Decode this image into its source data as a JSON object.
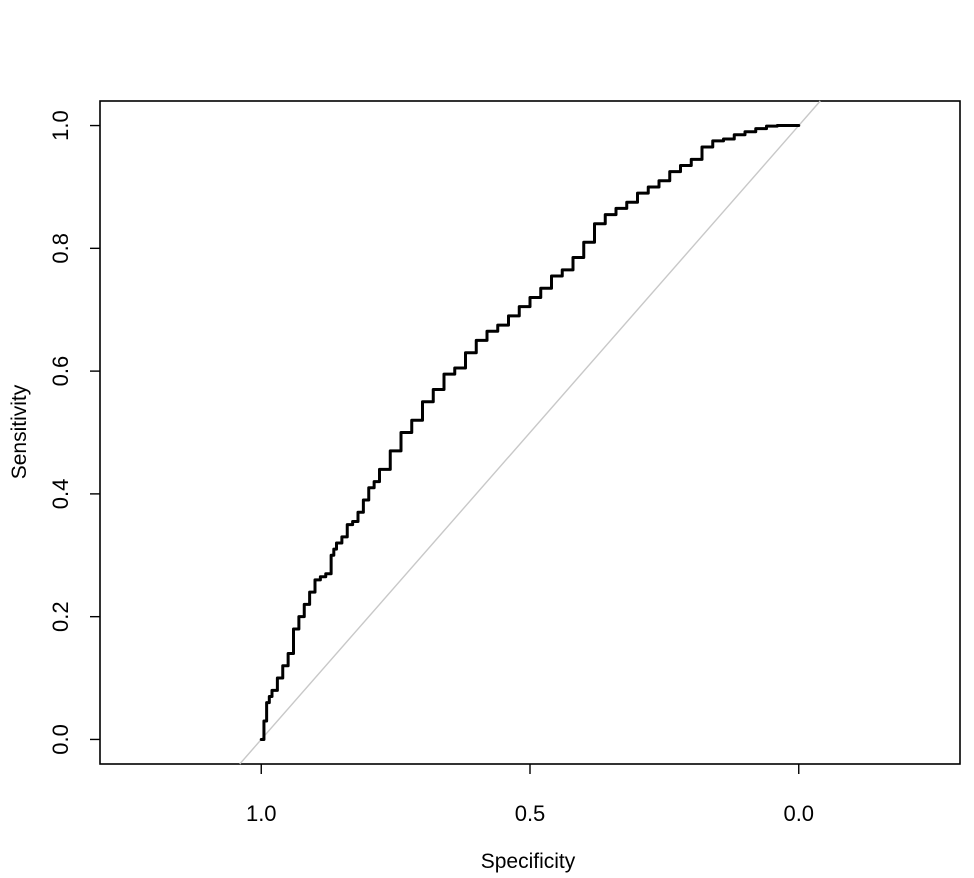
{
  "chart_data": {
    "type": "line",
    "title": "",
    "xlabel": "Specificity",
    "ylabel": "Sensitivity",
    "x_reversed": true,
    "xlim": [
      1.3,
      -0.3
    ],
    "ylim": [
      -0.04,
      1.04
    ],
    "x_ticks": [
      1.0,
      0.5,
      0.0
    ],
    "x_tick_labels": [
      "1.0",
      "0.5",
      "0.0"
    ],
    "y_ticks": [
      0.0,
      0.2,
      0.4,
      0.6,
      0.8,
      1.0
    ],
    "y_tick_labels": [
      "0.0",
      "0.2",
      "0.4",
      "0.6",
      "0.8",
      "1.0"
    ],
    "grid": false,
    "series": [
      {
        "color": "#000000",
        "x": [
          1.0,
          0.995,
          0.99,
          0.985,
          0.98,
          0.97,
          0.96,
          0.95,
          0.94,
          0.93,
          0.92,
          0.91,
          0.9,
          0.89,
          0.88,
          0.87,
          0.865,
          0.86,
          0.85,
          0.84,
          0.83,
          0.82,
          0.81,
          0.8,
          0.79,
          0.78,
          0.76,
          0.74,
          0.72,
          0.7,
          0.68,
          0.66,
          0.64,
          0.62,
          0.6,
          0.58,
          0.56,
          0.54,
          0.52,
          0.5,
          0.48,
          0.46,
          0.44,
          0.42,
          0.4,
          0.38,
          0.36,
          0.34,
          0.32,
          0.3,
          0.28,
          0.26,
          0.24,
          0.22,
          0.2,
          0.18,
          0.16,
          0.14,
          0.12,
          0.1,
          0.08,
          0.06,
          0.04,
          0.02,
          0.0
        ],
        "y": [
          0.0,
          0.03,
          0.06,
          0.07,
          0.08,
          0.1,
          0.12,
          0.14,
          0.18,
          0.2,
          0.22,
          0.24,
          0.26,
          0.265,
          0.27,
          0.3,
          0.31,
          0.32,
          0.33,
          0.35,
          0.355,
          0.37,
          0.39,
          0.41,
          0.42,
          0.44,
          0.47,
          0.5,
          0.52,
          0.55,
          0.57,
          0.595,
          0.605,
          0.63,
          0.65,
          0.665,
          0.675,
          0.69,
          0.705,
          0.72,
          0.735,
          0.755,
          0.765,
          0.785,
          0.81,
          0.84,
          0.855,
          0.865,
          0.875,
          0.89,
          0.9,
          0.91,
          0.925,
          0.935,
          0.945,
          0.965,
          0.975,
          0.978,
          0.985,
          0.99,
          0.995,
          0.999,
          1.0,
          1.0,
          1.0
        ]
      }
    ],
    "reference_line": {
      "color": "#c8c8c8",
      "x": [
        1.0,
        0.0
      ],
      "y": [
        0.0,
        1.0
      ]
    }
  }
}
